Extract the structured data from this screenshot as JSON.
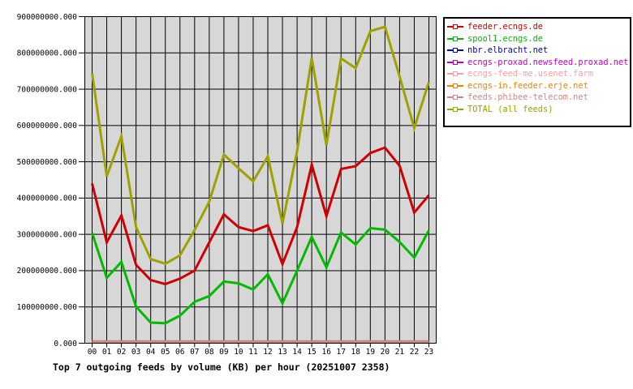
{
  "chart_data": {
    "type": "line",
    "title": "Top 7 outgoing feeds by volume (KB) per hour (20251007 2358)",
    "unit": "KB",
    "xlabel": "",
    "ylabel": "",
    "x_categories": [
      "00",
      "01",
      "02",
      "03",
      "04",
      "05",
      "06",
      "07",
      "08",
      "09",
      "10",
      "11",
      "12",
      "13",
      "14",
      "15",
      "16",
      "17",
      "18",
      "19",
      "20",
      "21",
      "22",
      "23"
    ],
    "ylim": [
      0,
      900000000
    ],
    "y_tick_step": 100000000,
    "y_tick_labels": [
      "0.000",
      "100000000.000",
      "200000000.000",
      "300000000.000",
      "400000000.000",
      "500000000.000",
      "600000000.000",
      "700000000.000",
      "800000000.000",
      "900000000.000"
    ],
    "grid": true,
    "plot_background": "#d7d7d7",
    "page_background": "#ffffff",
    "grid_color": "#000000",
    "legend_position": "top-right",
    "value_scale": 1000000,
    "series": [
      {
        "name": "feeder.ecngs.de",
        "color": "#d00000",
        "values_millions": [
          440,
          278,
          352,
          216,
          174,
          163,
          178,
          200,
          278,
          355,
          320,
          309,
          325,
          218,
          320,
          492,
          350,
          480,
          488,
          524,
          539,
          489,
          360,
          408
        ]
      },
      {
        "name": "spool1.ecngs.de",
        "color": "#00bb00",
        "values_millions": [
          304,
          180,
          224,
          101,
          57,
          55,
          76,
          114,
          130,
          170,
          165,
          148,
          190,
          110,
          200,
          293,
          209,
          305,
          272,
          317,
          313,
          279,
          236,
          311
        ]
      },
      {
        "name": "nbr.elbracht.net",
        "color": "#0000c0",
        "flat_millions": 3
      },
      {
        "name": "ecngs-proxad.newsfeed.proxad.net",
        "color": "#c000c0",
        "flat_millions": 3
      },
      {
        "name": "ecngs-feed-me.usenet.farm",
        "color": "#ff9e9e",
        "flat_millions": 3
      },
      {
        "name": "ecngs-in.feeder.erje.net",
        "color": "#f08000",
        "flat_millions": 3
      },
      {
        "name": "feeds.phibee-telecom.net",
        "color": "#cc8888",
        "flat_millions": 5
      },
      {
        "name": "TOTAL (all feeds)",
        "color": "#a0a000",
        "values_millions": [
          744,
          460,
          570,
          320,
          232,
          219,
          242,
          312,
          390,
          520,
          482,
          446,
          515,
          330,
          530,
          786,
          546,
          785,
          758,
          860,
          872,
          735,
          593,
          720
        ]
      }
    ]
  }
}
